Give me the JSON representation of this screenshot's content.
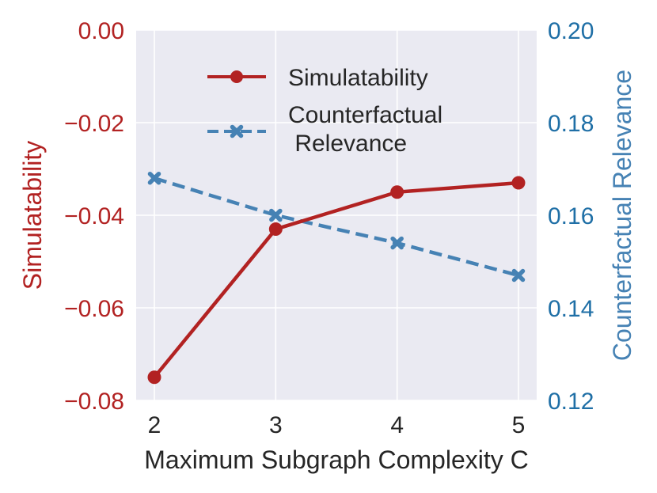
{
  "chart_data": {
    "type": "line",
    "x": [
      2,
      3,
      4,
      5
    ],
    "xlabel": "Maximum Subgraph Complexity C",
    "x_ticks": [
      "2",
      "3",
      "4",
      "5"
    ],
    "x_range": [
      1.85,
      5.15
    ],
    "grid": true,
    "legend_position": "top-right",
    "left_axis": {
      "label": "Simulatability",
      "range": [
        -0.08,
        0.0
      ],
      "ticks": [
        0.0,
        -0.02,
        -0.04,
        -0.06,
        -0.08
      ],
      "tick_labels": [
        "0.00",
        "−0.02",
        "−0.04",
        "−0.06",
        "−0.08"
      ],
      "color": "#b22222"
    },
    "right_axis": {
      "label": "Counterfactual Relevance",
      "range": [
        0.12,
        0.2
      ],
      "ticks": [
        0.2,
        0.18,
        0.16,
        0.14,
        0.12
      ],
      "tick_labels": [
        "0.20",
        "0.18",
        "0.16",
        "0.14",
        "0.12"
      ],
      "color": "#1f6fa6",
      "title_color": "#4682b4"
    },
    "series": [
      {
        "name": "Simulatability",
        "axis": "left",
        "values": [
          -0.075,
          -0.043,
          -0.035,
          -0.033
        ],
        "color": "#b22222",
        "style": "solid",
        "marker": "circle"
      },
      {
        "name_lines": [
          "Counterfactual",
          " Relevance"
        ],
        "axis": "right",
        "values": [
          0.168,
          0.16,
          0.154,
          0.147
        ],
        "color": "#4682b4",
        "style": "dashed",
        "marker": "x"
      }
    ],
    "colors": {
      "plot_background": "#eaeaf2",
      "grid": "#ffffff",
      "text": "#262626"
    }
  }
}
